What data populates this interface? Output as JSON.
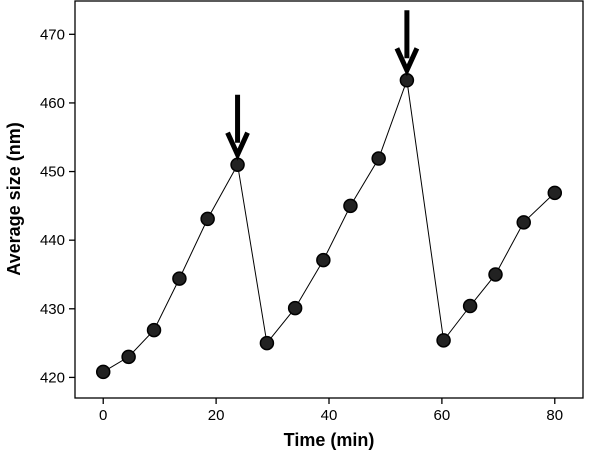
{
  "chart_data": {
    "type": "scatter",
    "title": "",
    "xlabel": "Time (min)",
    "ylabel": "Average size (nm)",
    "xlim": [
      -5,
      85
    ],
    "ylim": [
      417,
      475
    ],
    "xticks": [
      0,
      20,
      40,
      60,
      80
    ],
    "yticks": [
      420,
      430,
      440,
      450,
      460,
      470
    ],
    "grid": false,
    "series": [
      {
        "x": [
          0,
          4.5,
          9,
          13.5,
          18.5,
          23.8,
          29,
          34,
          39,
          43.8,
          48.8,
          53.8,
          60.3,
          65,
          69.5,
          74.5,
          80
        ],
        "y": [
          420.8,
          423,
          426.9,
          434.4,
          443.1,
          451,
          425,
          430.1,
          437.1,
          445,
          451.9,
          463.3,
          425.4,
          430.4,
          435,
          442.6,
          446.9
        ]
      }
    ],
    "annotations": [
      {
        "type": "arrow",
        "x": 23.8,
        "y": 451
      },
      {
        "type": "arrow",
        "x": 53.8,
        "y": 463.3
      }
    ]
  }
}
